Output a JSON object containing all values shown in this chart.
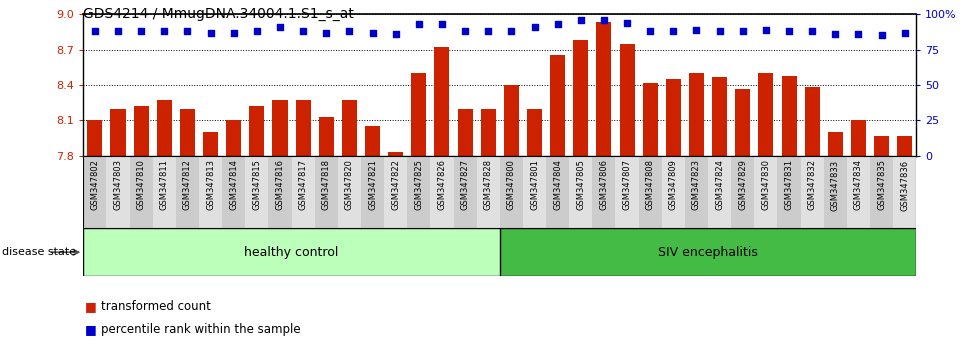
{
  "title": "GDS4214 / MmugDNA.34004.1.S1_s_at",
  "samples": [
    "GSM347802",
    "GSM347803",
    "GSM347810",
    "GSM347811",
    "GSM347812",
    "GSM347813",
    "GSM347814",
    "GSM347815",
    "GSM347816",
    "GSM347817",
    "GSM347818",
    "GSM347820",
    "GSM347821",
    "GSM347822",
    "GSM347825",
    "GSM347826",
    "GSM347827",
    "GSM347828",
    "GSM347800",
    "GSM347801",
    "GSM347804",
    "GSM347805",
    "GSM347806",
    "GSM347807",
    "GSM347808",
    "GSM347809",
    "GSM347823",
    "GSM347824",
    "GSM347829",
    "GSM347830",
    "GSM347831",
    "GSM347832",
    "GSM347833",
    "GSM347834",
    "GSM347835",
    "GSM347836"
  ],
  "bar_values": [
    8.1,
    8.2,
    8.22,
    8.27,
    8.2,
    8.0,
    8.1,
    8.22,
    8.27,
    8.27,
    8.13,
    8.27,
    8.05,
    7.83,
    8.5,
    8.72,
    8.2,
    8.2,
    8.4,
    8.2,
    8.65,
    8.78,
    8.93,
    8.75,
    8.42,
    8.45,
    8.5,
    8.47,
    8.37,
    8.5,
    8.48,
    8.38,
    8.0,
    8.1,
    7.97,
    7.97
  ],
  "percentile_values": [
    88,
    88,
    88,
    88,
    88,
    87,
    87,
    88,
    91,
    88,
    87,
    88,
    87,
    86,
    93,
    93,
    88,
    88,
    88,
    91,
    93,
    96,
    96,
    94,
    88,
    88,
    89,
    88,
    88,
    89,
    88,
    88,
    86,
    86,
    85,
    87
  ],
  "ylim_left": [
    7.8,
    9.0
  ],
  "ylim_right": [
    0,
    100
  ],
  "yticks_left": [
    7.8,
    8.1,
    8.4,
    8.7,
    9.0
  ],
  "yticks_right": [
    0,
    25,
    50,
    75,
    100
  ],
  "bar_color": "#cc2200",
  "dot_color": "#0000cc",
  "healthy_count": 18,
  "disease_label": "disease state",
  "group1_label": "healthy control",
  "group2_label": "SIV encephalitis",
  "legend_bar_label": "transformed count",
  "legend_dot_label": "percentile rank within the sample",
  "title_fontsize": 10,
  "group_bg1": "#bbffbb",
  "group_bg2": "#44bb44",
  "xtick_bg1": "#cccccc",
  "xtick_bg2": "#e0e0e0",
  "fig_width": 9.8,
  "fig_height": 3.54
}
